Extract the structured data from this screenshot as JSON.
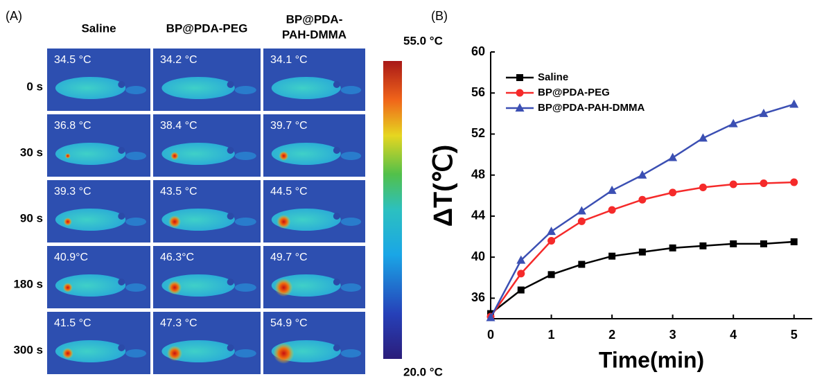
{
  "panel_a": {
    "label": "(A)",
    "columns": [
      [
        "Saline"
      ],
      [
        "BP@PDA-PEG"
      ],
      [
        "BP@PDA-",
        "PAH-DMMA"
      ]
    ],
    "rows": [
      "0 s",
      "30 s",
      "90 s",
      "180 s",
      "300 s"
    ],
    "cells": [
      [
        "34.5 °C",
        "34.2 °C",
        "34.1 °C"
      ],
      [
        "36.8 °C",
        "38.4 °C",
        "39.7 °C"
      ],
      [
        "39.3 °C",
        "43.5 °C",
        "44.5 °C"
      ],
      [
        "40.9°C",
        "46.3°C",
        "49.7 °C"
      ],
      [
        "41.5 °C",
        "47.3 °C",
        "54.9 °C"
      ]
    ],
    "colorbar_max": "55.0 °C",
    "colorbar_min": "20.0 °C"
  },
  "chart_data": {
    "type": "line",
    "label": "(B)",
    "xlabel": "Time(min)",
    "ylabel": "ΔT(℃)",
    "x": [
      0,
      0.5,
      1,
      1.5,
      2,
      2.5,
      3,
      3.5,
      4,
      4.5,
      5
    ],
    "xlim": [
      0,
      5.3
    ],
    "xticks": [
      0,
      1,
      2,
      3,
      4,
      5
    ],
    "ylim": [
      34,
      60
    ],
    "yticks": [
      36,
      40,
      44,
      48,
      52,
      56,
      60
    ],
    "legend": "upper left",
    "series": [
      {
        "name": "Saline",
        "color": "#000000",
        "marker": "square",
        "values": [
          34.5,
          36.8,
          38.3,
          39.3,
          40.1,
          40.5,
          40.9,
          41.1,
          41.3,
          41.3,
          41.5
        ]
      },
      {
        "name": "BP@PDA-PEG",
        "color": "#f52a2a",
        "marker": "circle",
        "values": [
          34.2,
          38.4,
          41.6,
          43.5,
          44.6,
          45.6,
          46.3,
          46.8,
          47.1,
          47.2,
          47.3
        ]
      },
      {
        "name": "BP@PDA-PAH-DMMA",
        "color": "#3b4fb3",
        "marker": "triangle",
        "values": [
          34.1,
          39.7,
          42.5,
          44.5,
          46.5,
          48.0,
          49.7,
          51.6,
          53.0,
          54.0,
          54.9
        ]
      }
    ]
  }
}
